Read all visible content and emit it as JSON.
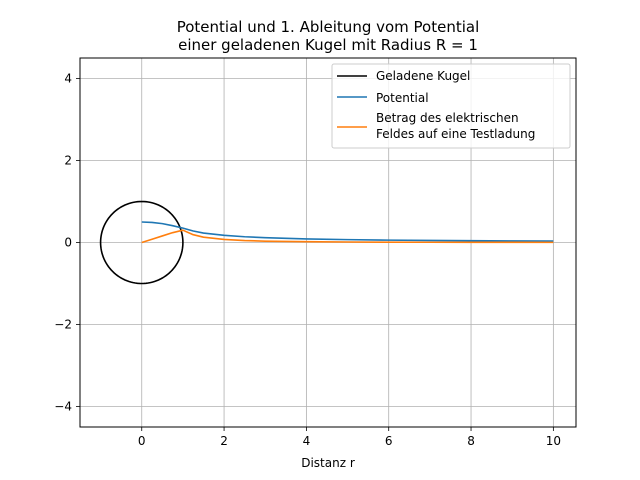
{
  "chart_data": {
    "type": "line",
    "title": "Potential und 1. Ableitung vom Potential",
    "subtitle": "einer geladenen Kugel mit Radius R = 1",
    "xlabel": "Distanz r",
    "ylabel": "",
    "xlim": [
      -1.5,
      10.55
    ],
    "ylim": [
      -4.5,
      4.5
    ],
    "xticks": [
      0,
      2,
      4,
      6,
      8,
      10
    ],
    "yticks": [
      -4,
      -2,
      0,
      2,
      4
    ],
    "xtick_labels": [
      "0",
      "2",
      "4",
      "6",
      "8",
      "10"
    ],
    "ytick_labels": [
      "−4",
      "−2",
      "0",
      "2",
      "4"
    ],
    "grid": true,
    "legend_position": "top-right",
    "legend": {
      "kugel": "Geladene Kugel",
      "potential": "Potential",
      "feld_line1": "Betrag des elektrischen",
      "feld_line2": "Feldes auf eine Testladung"
    },
    "series": [
      {
        "name": "Geladene Kugel",
        "color": "#000000",
        "shape": "circle",
        "center": [
          0,
          0
        ],
        "radius": 1
      },
      {
        "name": "Potential",
        "color": "#1f77b4",
        "x": [
          0,
          0.25,
          0.5,
          0.75,
          1,
          1.25,
          1.5,
          2,
          2.5,
          3,
          4,
          5,
          6,
          7,
          8,
          9,
          10
        ],
        "y": [
          0.5,
          0.49,
          0.46,
          0.41,
          0.35,
          0.28,
          0.23,
          0.175,
          0.14,
          0.117,
          0.088,
          0.07,
          0.058,
          0.05,
          0.044,
          0.039,
          0.035
        ]
      },
      {
        "name": "Betrag des elektrischen Feldes auf eine Testladung",
        "color": "#ff7f0e",
        "x": [
          0,
          0.25,
          0.5,
          0.75,
          1,
          1.25,
          1.5,
          2,
          2.5,
          3,
          4,
          5,
          6,
          7,
          8,
          9,
          10
        ],
        "y": [
          0,
          0.08,
          0.16,
          0.24,
          0.3,
          0.19,
          0.13,
          0.075,
          0.048,
          0.033,
          0.019,
          0.012,
          0.008,
          0.006,
          0.005,
          0.004,
          0.003
        ]
      }
    ]
  }
}
